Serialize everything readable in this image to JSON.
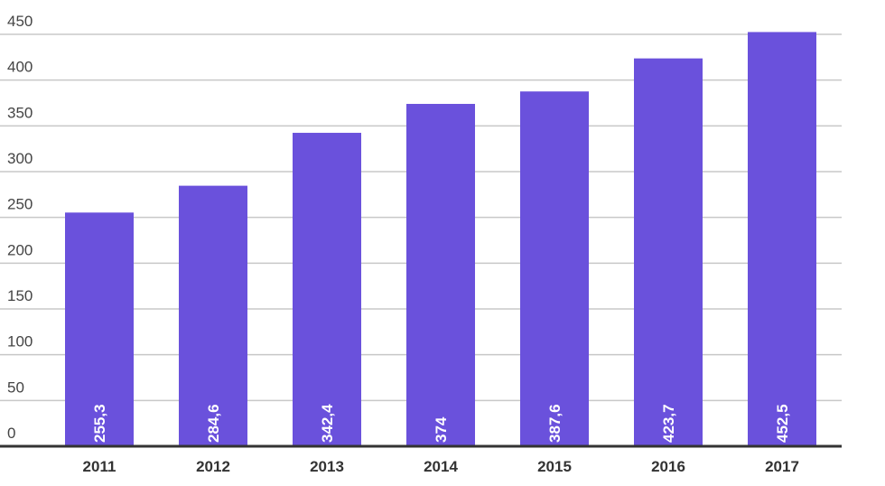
{
  "chart_data": {
    "type": "bar",
    "categories": [
      "2011",
      "2012",
      "2013",
      "2014",
      "2015",
      "2016",
      "2017"
    ],
    "values": [
      255.3,
      284.6,
      342.4,
      374,
      387.6,
      423.7,
      452.5
    ],
    "value_labels": [
      "255,3",
      "284,6",
      "342,4",
      "374",
      "387,6",
      "423,7",
      "452,5"
    ],
    "color": "#6a51dc",
    "ylim": [
      0,
      450
    ],
    "yticks": [
      0,
      50,
      100,
      150,
      200,
      250,
      300,
      350,
      400,
      450
    ],
    "grid": true
  }
}
